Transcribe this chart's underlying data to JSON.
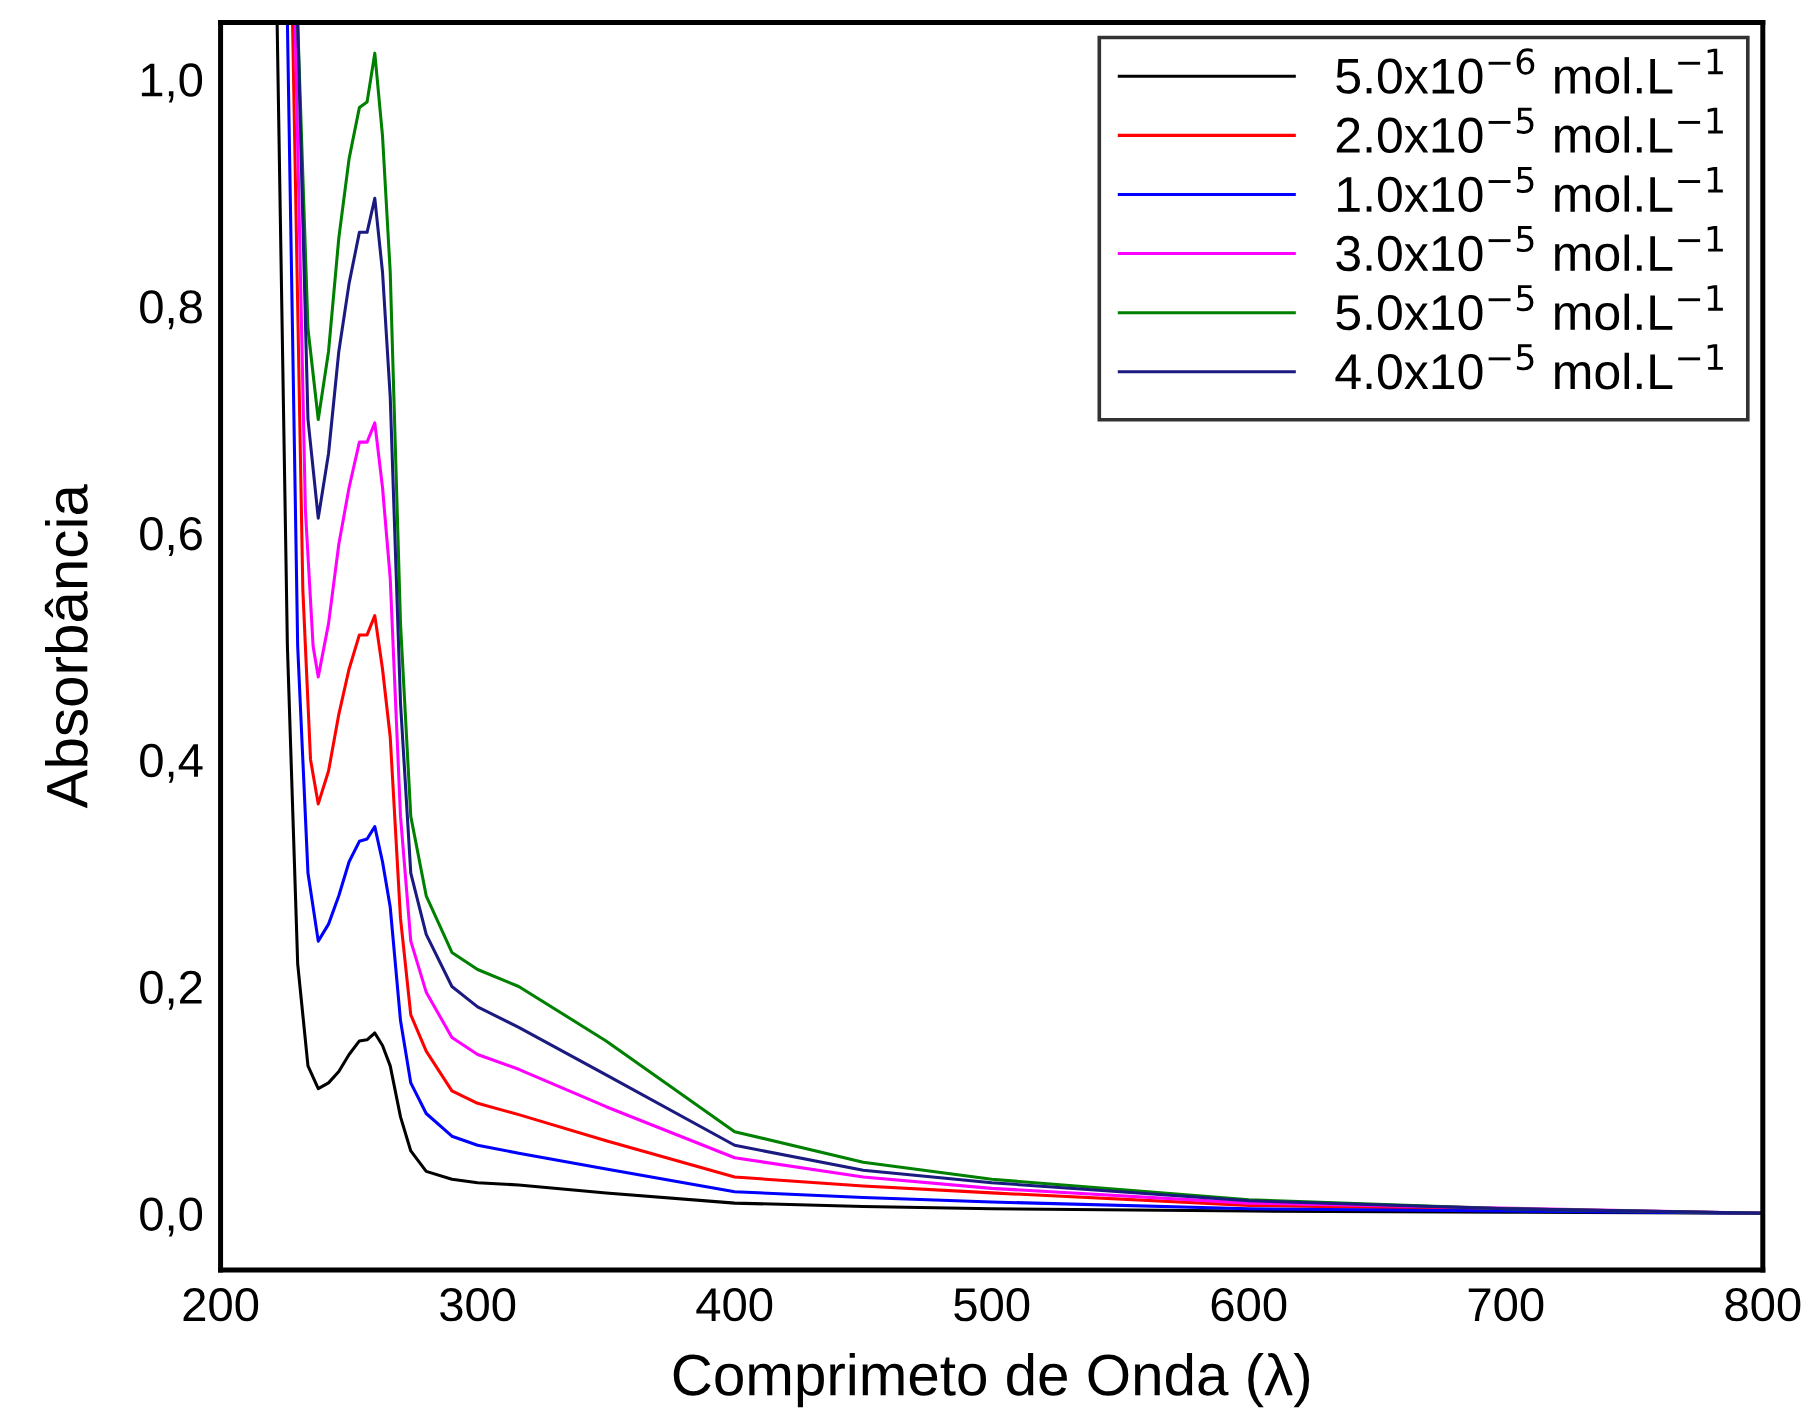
{
  "chart_data": {
    "type": "line",
    "xlabel": "Comprimeto de Onda (λ)",
    "ylabel": "Absorbância",
    "xlim": [
      200,
      800
    ],
    "xticks": [
      200,
      300,
      400,
      500,
      600,
      700,
      800
    ],
    "ylim": [
      -0.05,
      1.05
    ],
    "yticks": [
      {
        "value": 0.0,
        "label": "0,0"
      },
      {
        "value": 0.2,
        "label": "0,2"
      },
      {
        "value": 0.4,
        "label": "0,4"
      },
      {
        "value": 0.6,
        "label": "0,6"
      },
      {
        "value": 0.8,
        "label": "0,8"
      },
      {
        "value": 1.0,
        "label": "1,0"
      }
    ],
    "grid": false,
    "legend": "top right",
    "marker": "none",
    "line_style": "solid",
    "series": [
      {
        "name": "5.0x10$^{−6}$ mol.L$^{−1}$",
        "color": "#000000",
        "x": [
          222,
          226,
          230,
          234,
          238,
          242,
          246,
          250,
          254,
          257,
          260,
          263,
          266,
          270,
          274,
          280,
          290,
          300,
          316,
          350,
          400,
          450,
          500,
          600,
          700,
          800
        ],
        "values": [
          1.05,
          0.5,
          0.22,
          0.13,
          0.11,
          0.115,
          0.125,
          0.14,
          0.152,
          0.153,
          0.159,
          0.148,
          0.13,
          0.085,
          0.055,
          0.037,
          0.03,
          0.027,
          0.025,
          0.018,
          0.009,
          0.006,
          0.004,
          0.002,
          0.001,
          0
        ]
      },
      {
        "name": "2.0x10$^{−5}$ mol.L$^{−1}$",
        "color": "#ff0000",
        "x": [
          228,
          232,
          235,
          238,
          242,
          246,
          250,
          254,
          257,
          260,
          263,
          266,
          270,
          274,
          280,
          290,
          300,
          316,
          350,
          400,
          450,
          500,
          600,
          800
        ],
        "values": [
          1.05,
          0.55,
          0.4,
          0.361,
          0.39,
          0.44,
          0.48,
          0.51,
          0.51,
          0.527,
          0.48,
          0.42,
          0.26,
          0.175,
          0.143,
          0.108,
          0.097,
          0.087,
          0.064,
          0.032,
          0.024,
          0.018,
          0.007,
          0
        ]
      },
      {
        "name": "1.0x10$^{−5}$ mol.L$^{−1}$",
        "color": "#0000ff",
        "x": [
          226,
          230,
          234,
          238,
          242,
          246,
          250,
          254,
          257,
          260,
          263,
          266,
          270,
          274,
          280,
          290,
          300,
          316,
          350,
          400,
          450,
          500,
          600,
          700,
          800
        ],
        "values": [
          1.05,
          0.5,
          0.3,
          0.24,
          0.255,
          0.28,
          0.31,
          0.328,
          0.33,
          0.341,
          0.31,
          0.27,
          0.17,
          0.115,
          0.088,
          0.068,
          0.06,
          0.053,
          0.039,
          0.019,
          0.014,
          0.01,
          0.004,
          0.002,
          0
        ]
      },
      {
        "name": "3.0x10$^{−5}$ mol.L$^{−1}$",
        "color": "#ff00ff",
        "x": [
          229,
          233,
          236,
          238,
          242,
          246,
          250,
          254,
          257,
          260,
          263,
          266,
          270,
          274,
          280,
          290,
          300,
          316,
          350,
          400,
          450,
          500,
          600,
          800
        ],
        "values": [
          1.05,
          0.62,
          0.5,
          0.473,
          0.52,
          0.59,
          0.64,
          0.68,
          0.68,
          0.697,
          0.64,
          0.56,
          0.35,
          0.24,
          0.195,
          0.155,
          0.14,
          0.127,
          0.094,
          0.049,
          0.032,
          0.022,
          0.009,
          0
        ]
      },
      {
        "name": "5.0x10$^{−5}$ mol.L$^{−1}$",
        "color": "#008000",
        "x": [
          230,
          234,
          238,
          242,
          246,
          250,
          254,
          257,
          260,
          263,
          266,
          270,
          274,
          280,
          290,
          300,
          316,
          350,
          400,
          450,
          500,
          600,
          700,
          800
        ],
        "values": [
          1.05,
          0.78,
          0.7,
          0.76,
          0.86,
          0.93,
          0.975,
          0.98,
          1.023,
          0.95,
          0.83,
          0.52,
          0.35,
          0.28,
          0.23,
          0.215,
          0.2,
          0.152,
          0.072,
          0.045,
          0.03,
          0.012,
          0.004,
          0
        ]
      },
      {
        "name": "4.0x10$^{−5}$ mol.L$^{−1}$",
        "color": "#1a1a80",
        "x": [
          230,
          234,
          238,
          242,
          246,
          250,
          254,
          257,
          260,
          263,
          266,
          270,
          274,
          280,
          290,
          300,
          316,
          350,
          400,
          450,
          500,
          600,
          700,
          800
        ],
        "values": [
          1.05,
          0.7,
          0.613,
          0.67,
          0.76,
          0.82,
          0.865,
          0.865,
          0.895,
          0.83,
          0.72,
          0.45,
          0.3,
          0.246,
          0.2,
          0.182,
          0.164,
          0.122,
          0.06,
          0.038,
          0.027,
          0.011,
          0.004,
          0
        ]
      }
    ]
  }
}
